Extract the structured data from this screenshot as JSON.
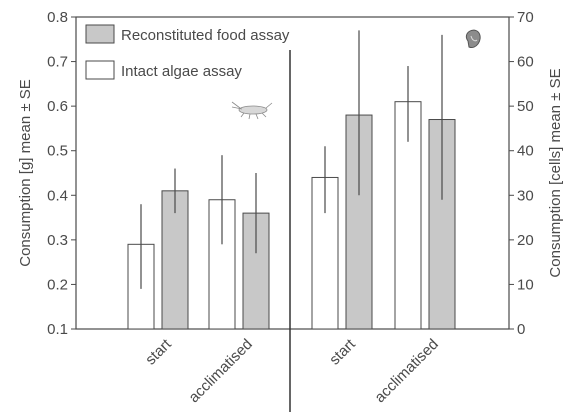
{
  "chart_data": {
    "type": "bar",
    "left_panel": {
      "ylabel": "Consumption [g] mean ± SE",
      "ylim": [
        0.1,
        0.8
      ],
      "yticks": [
        "0.1",
        "0.2",
        "0.3",
        "0.4",
        "0.5",
        "0.6",
        "0.7",
        "0.8"
      ],
      "categories": [
        "start",
        "acclimatised"
      ],
      "series": [
        {
          "name": "Intact algae assay",
          "values": [
            0.29,
            0.39
          ],
          "err_low": [
            0.19,
            0.29
          ],
          "err_high": [
            0.38,
            0.49
          ]
        },
        {
          "name": "Reconstituted food assay",
          "values": [
            0.41,
            0.36
          ],
          "err_low": [
            0.36,
            0.27
          ],
          "err_high": [
            0.46,
            0.45
          ]
        }
      ]
    },
    "right_panel": {
      "ylabel": "Consumption [cells] mean ± SE",
      "ylim": [
        0,
        70
      ],
      "yticks": [
        "0",
        "10",
        "20",
        "30",
        "40",
        "50",
        "60",
        "70"
      ],
      "categories": [
        "start",
        "acclimatised"
      ],
      "series": [
        {
          "name": "Intact algae assay",
          "values": [
            34,
            51
          ],
          "err_low": [
            26,
            42
          ],
          "err_high": [
            41,
            59
          ]
        },
        {
          "name": "Reconstituted food assay",
          "values": [
            48,
            47
          ],
          "err_low": [
            30,
            29
          ],
          "err_high": [
            67,
            66
          ]
        }
      ]
    },
    "legend": {
      "position": "top-left",
      "entries": [
        {
          "label": "Reconstituted food assay",
          "color": "#c8c8c8"
        },
        {
          "label": "Intact algae assay",
          "color": "#ffffff"
        }
      ]
    },
    "colors": {
      "reconstituted": "#c8c8c8",
      "intact": "#ffffff",
      "stroke": "#4a4a4a",
      "divider": "#333333"
    },
    "icons": [
      "amphipod-icon",
      "algae-cell-icon"
    ]
  }
}
